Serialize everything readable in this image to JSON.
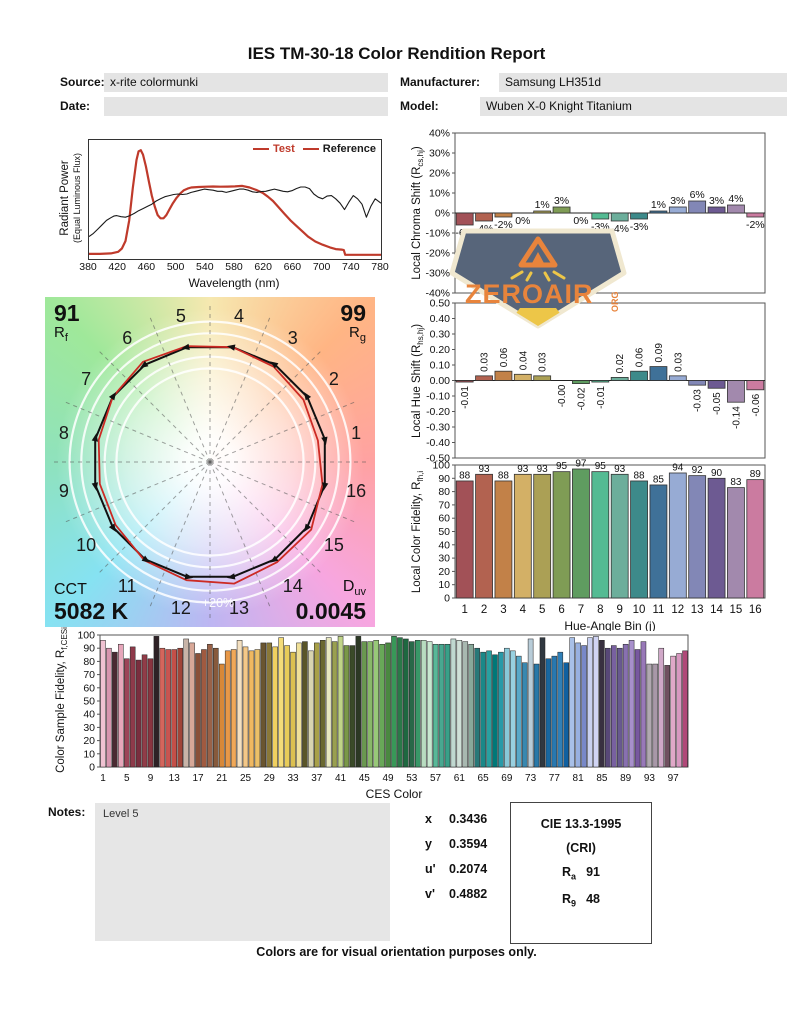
{
  "title": "IES TM-30-18 Color Rendition Report",
  "header": {
    "source_label": "Source:",
    "source_value": "x-rite colormunki",
    "date_label": "Date:",
    "date_value": "",
    "manufacturer_label": "Manufacturer:",
    "manufacturer_value": "Samsung LH351d",
    "model_label": "Model:",
    "model_value": "Wuben X-0 Knight Titanium"
  },
  "watermark": {
    "text": "ZEROAIR",
    "suffix": "ORG"
  },
  "notes": {
    "label": "Notes:",
    "content": "Level 5"
  },
  "chromaticity": {
    "rows": [
      {
        "k": "x",
        "v": "0.3436"
      },
      {
        "k": "y",
        "v": "0.3594"
      },
      {
        "k": "u'",
        "v": "0.2074"
      },
      {
        "k": "v'",
        "v": "0.4882"
      }
    ]
  },
  "cie_box": {
    "line1": "CIE 13.3-1995",
    "line2": "(CRI)",
    "ra_prefix": "R",
    "ra_sub": "a",
    "ra_value": "91",
    "r9_prefix": "R",
    "r9_sub": "9",
    "r9_value": "48"
  },
  "footer": "Colors are for visual orientation purposes only.",
  "bin_colors": [
    "#a25157",
    "#b26250",
    "#c28148",
    "#d3b066",
    "#aba055",
    "#7f9c55",
    "#5f9c60",
    "#54bb93",
    "#6cae9b",
    "#3d8a8a",
    "#3f7198",
    "#97abd4",
    "#8287b6",
    "#6d5a92",
    "#a289ad",
    "#cb7ba0"
  ],
  "chart_data": [
    {
      "id": "spd",
      "type": "line",
      "xlabel": "Wavelength (nm)",
      "ylabel_line1": "Radiant Power",
      "ylabel_line2": "(Equal Luminous Flux)",
      "xlim": [
        380,
        780
      ],
      "ylim": [
        0,
        1
      ],
      "grid": false,
      "xticks": [
        380,
        420,
        460,
        500,
        540,
        580,
        620,
        660,
        700,
        740,
        780
      ],
      "legend_position": "top-right",
      "legend": [
        {
          "label": "Test",
          "marker_color": "#bf3a2b",
          "text_color": "#bf3a2b"
        },
        {
          "label": "Reference",
          "marker_color": "#bf3a2b",
          "text_color": "#1a1a1a"
        }
      ],
      "series": [
        {
          "name": "Test",
          "color": "#bf3a2b",
          "points": [
            [
              380,
              0.01
            ],
            [
              395,
              0.01
            ],
            [
              410,
              0.015
            ],
            [
              420,
              0.03
            ],
            [
              425,
              0.06
            ],
            [
              430,
              0.13
            ],
            [
              435,
              0.32
            ],
            [
              440,
              0.62
            ],
            [
              445,
              0.88
            ],
            [
              448,
              0.96
            ],
            [
              451,
              0.97
            ],
            [
              454,
              0.93
            ],
            [
              458,
              0.82
            ],
            [
              462,
              0.68
            ],
            [
              466,
              0.55
            ],
            [
              470,
              0.45
            ],
            [
              474,
              0.37
            ],
            [
              478,
              0.34
            ],
            [
              482,
              0.34
            ],
            [
              486,
              0.37
            ],
            [
              490,
              0.42
            ],
            [
              495,
              0.48
            ],
            [
              500,
              0.53
            ],
            [
              505,
              0.57
            ],
            [
              510,
              0.6
            ],
            [
              515,
              0.615
            ],
            [
              520,
              0.625
            ],
            [
              530,
              0.63
            ],
            [
              540,
              0.632
            ],
            [
              550,
              0.634
            ],
            [
              560,
              0.632
            ],
            [
              570,
              0.633
            ],
            [
              580,
              0.635
            ],
            [
              590,
              0.64
            ],
            [
              600,
              0.625
            ],
            [
              610,
              0.6
            ],
            [
              618,
              0.575
            ],
            [
              625,
              0.54
            ],
            [
              632,
              0.5
            ],
            [
              640,
              0.44
            ],
            [
              648,
              0.38
            ],
            [
              656,
              0.32
            ],
            [
              664,
              0.27
            ],
            [
              672,
              0.22
            ],
            [
              680,
              0.17
            ],
            [
              690,
              0.125
            ],
            [
              700,
              0.095
            ],
            [
              710,
              0.07
            ],
            [
              718,
              0.055
            ],
            [
              726,
              0.05
            ],
            [
              729,
              0.045
            ],
            [
              731,
              0.002
            ],
            [
              740,
              0.002
            ],
            [
              780,
              0.002
            ]
          ]
        },
        {
          "name": "Reference",
          "color": "#1a1a1a",
          "points": [
            [
              380,
              0.17
            ],
            [
              386,
              0.2
            ],
            [
              392,
              0.24
            ],
            [
              398,
              0.28
            ],
            [
              404,
              0.32
            ],
            [
              410,
              0.345
            ],
            [
              414,
              0.36
            ],
            [
              418,
              0.365
            ],
            [
              424,
              0.355
            ],
            [
              430,
              0.35
            ],
            [
              436,
              0.365
            ],
            [
              442,
              0.385
            ],
            [
              448,
              0.41
            ],
            [
              454,
              0.43
            ],
            [
              460,
              0.45
            ],
            [
              466,
              0.47
            ],
            [
              472,
              0.5
            ],
            [
              478,
              0.52
            ],
            [
              484,
              0.54
            ],
            [
              490,
              0.55
            ],
            [
              496,
              0.56
            ],
            [
              502,
              0.565
            ],
            [
              508,
              0.56
            ],
            [
              514,
              0.565
            ],
            [
              520,
              0.58
            ],
            [
              526,
              0.59
            ],
            [
              532,
              0.6
            ],
            [
              538,
              0.61
            ],
            [
              544,
              0.605
            ],
            [
              550,
              0.6
            ],
            [
              556,
              0.59
            ],
            [
              562,
              0.59
            ],
            [
              568,
              0.58
            ],
            [
              574,
              0.59
            ],
            [
              580,
              0.6
            ],
            [
              586,
              0.61
            ],
            [
              592,
              0.61
            ],
            [
              598,
              0.6
            ],
            [
              604,
              0.585
            ],
            [
              610,
              0.58
            ],
            [
              616,
              0.588
            ],
            [
              622,
              0.59
            ],
            [
              628,
              0.6
            ],
            [
              634,
              0.61
            ],
            [
              640,
              0.6
            ],
            [
              646,
              0.59
            ],
            [
              652,
              0.585
            ],
            [
              658,
              0.595
            ],
            [
              664,
              0.615
            ],
            [
              670,
              0.63
            ],
            [
              676,
              0.63
            ],
            [
              682,
              0.615
            ],
            [
              688,
              0.565
            ],
            [
              694,
              0.535
            ],
            [
              700,
              0.52
            ],
            [
              706,
              0.545
            ],
            [
              712,
              0.55
            ],
            [
              718,
              0.52
            ],
            [
              724,
              0.48
            ],
            [
              730,
              0.42
            ],
            [
              736,
              0.49
            ],
            [
              742,
              0.55
            ],
            [
              748,
              0.52
            ],
            [
              754,
              0.47
            ],
            [
              760,
              0.35
            ],
            [
              766,
              0.45
            ],
            [
              772,
              0.52
            ],
            [
              778,
              0.49
            ],
            [
              780,
              0.48
            ]
          ]
        }
      ]
    },
    {
      "id": "chroma_shift",
      "type": "bar",
      "ylabel_prefix": "Local Chroma Shift (R",
      "ylabel_sub": "cs,hj",
      "ylabel_suffix": ")",
      "ylim": [
        -40,
        40
      ],
      "ytick_values": [
        40,
        30,
        20,
        10,
        0,
        -10,
        -20,
        -30,
        -40
      ],
      "ytick_labels": [
        "40%",
        "30%",
        "20%",
        "10%",
        "0%",
        "-10%",
        "-20%",
        "-30%",
        "-40%"
      ],
      "categories": [
        1,
        2,
        3,
        4,
        5,
        6,
        7,
        8,
        9,
        10,
        11,
        12,
        13,
        14,
        15,
        16
      ],
      "values": [
        -6,
        -4,
        -2,
        0,
        1,
        3,
        0,
        -3,
        -4,
        -3,
        1,
        3,
        6,
        3,
        4,
        -2
      ],
      "labels": [
        "-6%",
        "-4%",
        "-2%",
        "0%",
        "1%",
        "3%",
        "0%",
        "-3%",
        "-4%",
        "-3%",
        "1%",
        "3%",
        "6%",
        "3%",
        "4%",
        "-2%"
      ]
    },
    {
      "id": "hue_shift",
      "type": "bar",
      "ylabel_prefix": "Local Hue Shift (R",
      "ylabel_sub": "hs,hj",
      "ylabel_suffix": ")",
      "ylim": [
        -0.5,
        0.5
      ],
      "ytick_values": [
        0.5,
        0.4,
        0.3,
        0.2,
        0.1,
        0,
        -0.1,
        -0.2,
        -0.3,
        -0.4,
        -0.5
      ],
      "ytick_labels": [
        "0.50",
        "0.40",
        "0.30",
        "0.20",
        "0.10",
        "0.00",
        "-0.10",
        "-0.20",
        "-0.30",
        "-0.40",
        "-0.50"
      ],
      "categories": [
        1,
        2,
        3,
        4,
        5,
        6,
        7,
        8,
        9,
        10,
        11,
        12,
        13,
        14,
        15,
        16
      ],
      "values": [
        -0.01,
        0.03,
        0.06,
        0.04,
        0.03,
        0,
        -0.02,
        -0.01,
        0.02,
        0.06,
        0.09,
        0.03,
        -0.03,
        -0.05,
        -0.14,
        -0.06
      ],
      "labels": [
        "-0.01",
        "0.03",
        "0.06",
        "0.04",
        "0.03",
        "-0.00",
        "-0.02",
        "-0.01",
        "0.02",
        "0.06",
        "0.09",
        "0.03",
        "-0.03",
        "-0.05",
        "-0.14",
        "-0.06"
      ]
    },
    {
      "id": "local_fidelity",
      "type": "bar",
      "ylabel_prefix": "Local Color Fidelity, R",
      "ylabel_sub": "fh,i",
      "ylabel_suffix": "",
      "xlabel": "Hue-Angle Bin (j)",
      "ylim": [
        0,
        100
      ],
      "ytick_values": [
        100,
        90,
        80,
        70,
        60,
        50,
        40,
        30,
        20,
        10,
        0
      ],
      "ytick_labels": [
        "100",
        "90",
        "80",
        "70",
        "60",
        "50",
        "40",
        "30",
        "20",
        "10",
        "0"
      ],
      "categories": [
        1,
        2,
        3,
        4,
        5,
        6,
        7,
        8,
        9,
        10,
        11,
        12,
        13,
        14,
        15,
        16
      ],
      "values": [
        88,
        93,
        88,
        93,
        93,
        95,
        97,
        95,
        93,
        88,
        85,
        94,
        92,
        90,
        83,
        89
      ]
    },
    {
      "id": "ces_fidelity",
      "type": "bar",
      "ylabel_prefix": "Color Sample Fidelity, R",
      "ylabel_sub": "f,CESi",
      "ylabel_suffix": "",
      "xlabel": "CES Color",
      "ylim": [
        0,
        100
      ],
      "ytick_values": [
        100,
        90,
        80,
        70,
        60,
        50,
        40,
        30,
        20,
        10,
        0
      ],
      "ytick_labels": [
        "100",
        "90",
        "80",
        "70",
        "60",
        "50",
        "40",
        "30",
        "20",
        "10",
        "0"
      ],
      "xticks": [
        1,
        5,
        9,
        13,
        17,
        21,
        25,
        29,
        33,
        37,
        41,
        45,
        49,
        53,
        57,
        61,
        65,
        69,
        73,
        77,
        81,
        85,
        89,
        93,
        97
      ],
      "values": [
        96,
        90,
        87,
        93,
        82,
        91,
        81,
        85,
        82,
        99,
        90,
        89,
        89,
        90,
        97,
        94,
        86,
        89,
        93,
        90,
        78,
        88,
        89,
        96,
        91,
        88,
        89,
        94,
        94,
        91,
        98,
        92,
        87,
        94,
        95,
        88,
        94,
        96,
        98,
        95,
        99,
        92,
        92,
        99,
        95,
        95,
        96,
        93,
        94,
        99,
        98,
        97,
        95,
        96,
        96,
        95,
        93,
        93,
        93,
        97,
        96,
        95,
        93,
        90,
        87,
        88,
        85,
        87,
        90,
        88,
        84,
        79,
        97,
        78,
        98,
        82,
        84,
        87,
        79,
        98,
        94,
        92,
        98,
        99,
        96,
        90,
        92,
        90,
        93,
        96,
        89,
        95,
        78,
        78,
        90,
        77,
        84,
        86,
        88
      ],
      "colors": [
        "#f0c2d2",
        "#d795ae",
        "#4a2a32",
        "#e6a6ba",
        "#9c4458",
        "#8e3a4a",
        "#7a2e3e",
        "#913c48",
        "#8a3440",
        "#2e2226",
        "#d4655c",
        "#c85450",
        "#c44f48",
        "#a04438",
        "#c8b4a8",
        "#d8a898",
        "#8a5038",
        "#a05a40",
        "#9a6248",
        "#875a3c",
        "#d88838",
        "#e89848",
        "#f0a858",
        "#f4e0c0",
        "#f4c888",
        "#f0b860",
        "#ecc068",
        "#6a5530",
        "#8a7838",
        "#f0d060",
        "#f4dc78",
        "#e8cc58",
        "#dcc050",
        "#f0e098",
        "#5a5528",
        "#d8d4b0",
        "#a8a048",
        "#6a6830",
        "#e8e8c0",
        "#9aa050",
        "#c0d488",
        "#7a9848",
        "#3a4a28",
        "#2c3824",
        "#6a9850",
        "#88b868",
        "#98c878",
        "#68a858",
        "#4a8840",
        "#389858",
        "#2a7848",
        "#1e6840",
        "#286848",
        "#389868",
        "#b8dcc0",
        "#c8e8d0",
        "#58b898",
        "#48a890",
        "#38a088",
        "#c0d8d0",
        "#d0e0d8",
        "#a8b8b0",
        "#88a89a",
        "#287878",
        "#1a8888",
        "#28a0a0",
        "#007878",
        "#289aa8",
        "#88c8d8",
        "#98d0e0",
        "#58a8c8",
        "#3888b0",
        "#b8ccd8",
        "#2878a8",
        "#303840",
        "#1868a0",
        "#2878b0",
        "#3080b8",
        "#1060a0",
        "#a8c0e8",
        "#98b0e0",
        "#7888c8",
        "#c8d0f0",
        "#d0d4f4",
        "#383040",
        "#584878",
        "#7860a0",
        "#685890",
        "#8870b0",
        "#a890cc",
        "#7858a0",
        "#9878b8",
        "#b0a8b0",
        "#a898a8",
        "#d0a8c8",
        "#705060",
        "#e0a8c8",
        "#d898c0",
        "#b04878"
      ]
    },
    {
      "id": "color_vector_graphic",
      "type": "cvg",
      "rf_value": "91",
      "rf_prefix": "R",
      "rf_sub": "f",
      "rg_value": "99",
      "rg_prefix": "R",
      "rg_sub": "g",
      "cct_label": "CCT",
      "cct_value": "5082 K",
      "duv_prefix": "D",
      "duv_sub": "uv",
      "duv_value": "0.0045",
      "ring_label": "+20%",
      "bins": [
        1,
        2,
        3,
        4,
        5,
        6,
        7,
        8,
        9,
        10,
        11,
        12,
        13,
        14,
        15,
        16
      ],
      "chroma_shift_pct": [
        -6,
        -4,
        -2,
        0,
        1,
        3,
        0,
        -3,
        -4,
        -3,
        1,
        3,
        6,
        3,
        4,
        -2
      ],
      "hue_shift": [
        -0.01,
        0.03,
        0.06,
        0.04,
        0.03,
        0,
        -0.02,
        -0.01,
        0.02,
        0.06,
        0.09,
        0.03,
        -0.03,
        -0.05,
        -0.14,
        -0.06
      ],
      "test_color": "#cc2a24",
      "reference_color": "#111111"
    }
  ]
}
